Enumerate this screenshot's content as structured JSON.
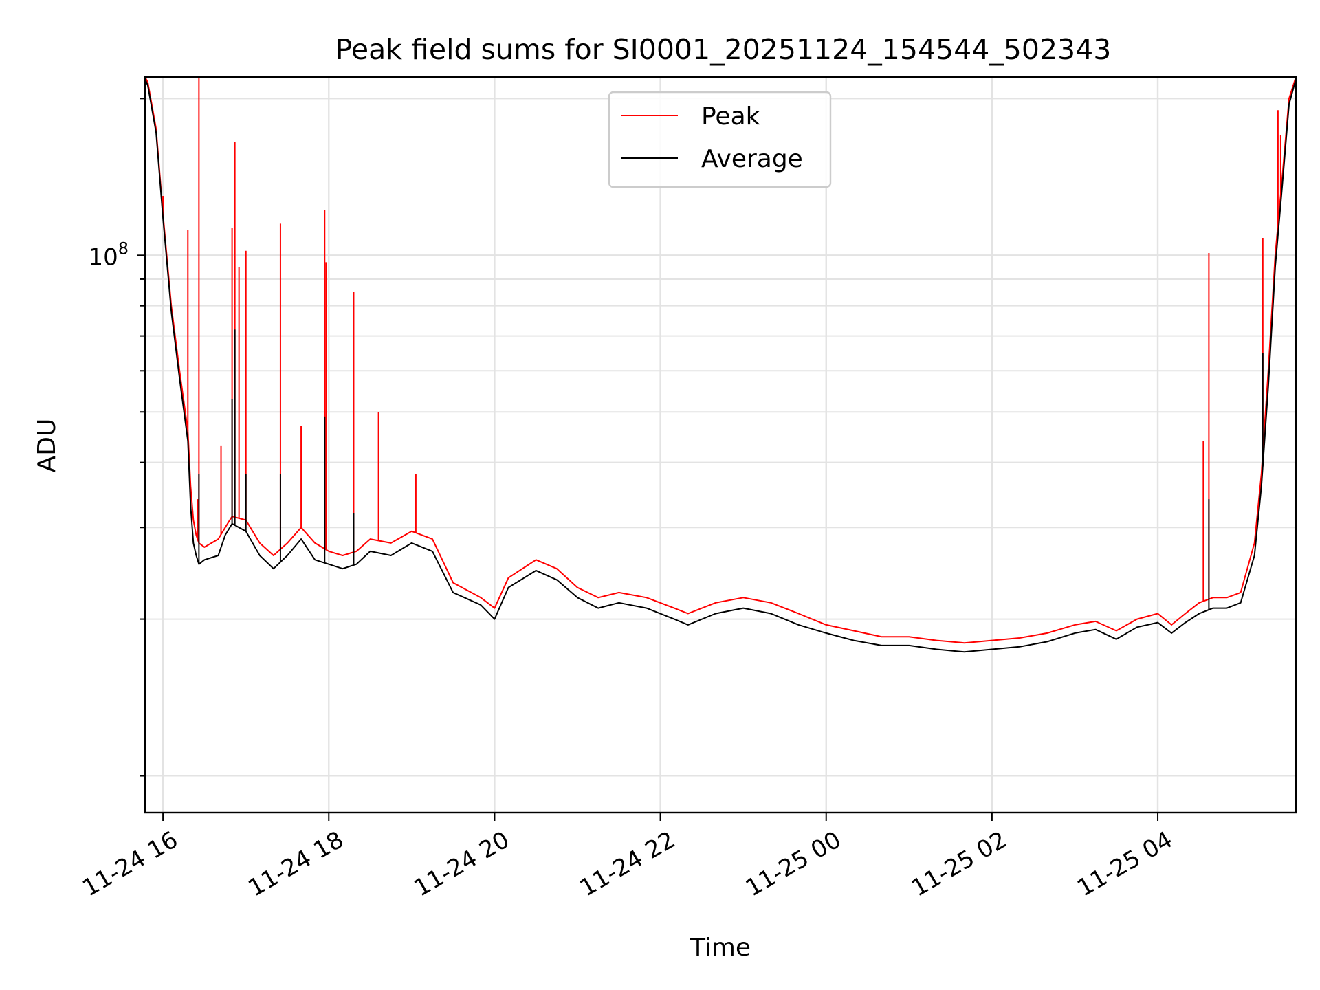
{
  "chart_data": {
    "type": "line",
    "title": "Peak field sums for SI0001_20251124_154544_502343",
    "xlabel": "Time",
    "ylabel": "ADU",
    "y_scale": "log",
    "ylim": [
      8500000,
      220000000
    ],
    "xlim": [
      "2025-11-24 15:47",
      "2025-11-25 05:40"
    ],
    "x_ticks": [
      "2025-11-24 16:00",
      "2025-11-24 18:00",
      "2025-11-24 20:00",
      "2025-11-24 22:00",
      "2025-11-25 00:00",
      "2025-11-25 02:00",
      "2025-11-25 04:00"
    ],
    "x_tick_labels": [
      "11-24 16",
      "11-24 18",
      "11-24 20",
      "11-24 22",
      "11-25 00",
      "11-25 02",
      "11-25 04"
    ],
    "y_ticks": [
      100000000
    ],
    "y_tick_labels": [
      {
        "base": "10",
        "exp": "8"
      }
    ],
    "y_minor_ticks": [
      10000000,
      20000000,
      30000000,
      40000000,
      50000000,
      60000000,
      70000000,
      80000000,
      90000000,
      200000000
    ],
    "grid": true,
    "legend": {
      "position": "upper center",
      "entries": [
        "Peak",
        "Average"
      ]
    },
    "series": [
      {
        "name": "Peak",
        "color": "#ff0000",
        "x": [
          "2025-11-24 15:47",
          "2025-11-24 15:49",
          "2025-11-24 15:55",
          "2025-11-24 16:00",
          "2025-11-24 16:06",
          "2025-11-24 16:12",
          "2025-11-24 16:18",
          "2025-11-24 16:20",
          "2025-11-24 16:22",
          "2025-11-24 16:24",
          "2025-11-24 16:26",
          "2025-11-24 16:30",
          "2025-11-24 16:40",
          "2025-11-24 16:45",
          "2025-11-24 16:50",
          "2025-11-24 17:00",
          "2025-11-24 17:10",
          "2025-11-24 17:20",
          "2025-11-24 17:30",
          "2025-11-24 17:40",
          "2025-11-24 17:50",
          "2025-11-24 18:00",
          "2025-11-24 18:10",
          "2025-11-24 18:20",
          "2025-11-24 18:30",
          "2025-11-24 18:45",
          "2025-11-24 19:00",
          "2025-11-24 19:15",
          "2025-11-24 19:30",
          "2025-11-24 19:50",
          "2025-11-24 20:00",
          "2025-11-24 20:10",
          "2025-11-24 20:30",
          "2025-11-24 20:45",
          "2025-11-24 21:00",
          "2025-11-24 21:15",
          "2025-11-24 21:30",
          "2025-11-24 21:50",
          "2025-11-24 22:10",
          "2025-11-24 22:20",
          "2025-11-24 22:40",
          "2025-11-24 23:00",
          "2025-11-24 23:20",
          "2025-11-24 23:40",
          "2025-11-25 00:00",
          "2025-11-25 00:20",
          "2025-11-25 00:40",
          "2025-11-25 01:00",
          "2025-11-25 01:20",
          "2025-11-25 01:40",
          "2025-11-25 02:00",
          "2025-11-25 02:20",
          "2025-11-25 02:40",
          "2025-11-25 03:00",
          "2025-11-25 03:15",
          "2025-11-25 03:30",
          "2025-11-25 03:45",
          "2025-11-25 04:00",
          "2025-11-25 04:10",
          "2025-11-25 04:20",
          "2025-11-25 04:30",
          "2025-11-25 04:40",
          "2025-11-25 04:50",
          "2025-11-25 05:00",
          "2025-11-25 05:10",
          "2025-11-25 05:15",
          "2025-11-25 05:20",
          "2025-11-25 05:25",
          "2025-11-25 05:30",
          "2025-11-25 05:35",
          "2025-11-25 05:40"
        ],
        "values": [
          220000000,
          215000000,
          175000000,
          120000000,
          80000000,
          60000000,
          46000000,
          36000000,
          31000000,
          29000000,
          28000000,
          27500000,
          28500000,
          30000000,
          31500000,
          31000000,
          28000000,
          26500000,
          28000000,
          30000000,
          28000000,
          27000000,
          26500000,
          27000000,
          28500000,
          28000000,
          29500000,
          28500000,
          23500000,
          22000000,
          21000000,
          24000000,
          26000000,
          25000000,
          23000000,
          22000000,
          22500000,
          22000000,
          21000000,
          20500000,
          21500000,
          22000000,
          21500000,
          20500000,
          19500000,
          19000000,
          18500000,
          18500000,
          18200000,
          18000000,
          18200000,
          18400000,
          18800000,
          19500000,
          19800000,
          19000000,
          20000000,
          20500000,
          19500000,
          20500000,
          21500000,
          22000000,
          22000000,
          22500000,
          28000000,
          38000000,
          60000000,
          100000000,
          140000000,
          200000000,
          220000000
        ],
        "spikes": [
          {
            "x": "2025-11-24 16:00",
            "y": 130000000
          },
          {
            "x": "2025-11-24 16:18",
            "y": 112000000
          },
          {
            "x": "2025-11-24 16:25",
            "y": 34000000
          },
          {
            "x": "2025-11-24 16:26",
            "y": 220000000
          },
          {
            "x": "2025-11-24 16:42",
            "y": 43000000
          },
          {
            "x": "2025-11-24 16:50",
            "y": 113000000
          },
          {
            "x": "2025-11-24 16:52",
            "y": 165000000
          },
          {
            "x": "2025-11-24 16:55",
            "y": 95000000
          },
          {
            "x": "2025-11-24 17:00",
            "y": 102000000
          },
          {
            "x": "2025-11-24 17:25",
            "y": 115000000
          },
          {
            "x": "2025-11-24 17:40",
            "y": 47000000
          },
          {
            "x": "2025-11-24 17:57",
            "y": 122000000
          },
          {
            "x": "2025-11-24 17:58",
            "y": 97000000
          },
          {
            "x": "2025-11-24 18:18",
            "y": 85000000
          },
          {
            "x": "2025-11-24 18:36",
            "y": 50000000
          },
          {
            "x": "2025-11-24 19:03",
            "y": 38000000
          },
          {
            "x": "2025-11-25 04:33",
            "y": 44000000
          },
          {
            "x": "2025-11-25 04:37",
            "y": 101000000
          },
          {
            "x": "2025-11-25 05:16",
            "y": 108000000
          },
          {
            "x": "2025-11-25 05:27",
            "y": 190000000
          },
          {
            "x": "2025-11-25 05:29",
            "y": 170000000
          }
        ]
      },
      {
        "name": "Average",
        "color": "#000000",
        "x": [
          "2025-11-24 15:47",
          "2025-11-24 15:49",
          "2025-11-24 15:55",
          "2025-11-24 16:00",
          "2025-11-24 16:06",
          "2025-11-24 16:12",
          "2025-11-24 16:18",
          "2025-11-24 16:20",
          "2025-11-24 16:22",
          "2025-11-24 16:24",
          "2025-11-24 16:26",
          "2025-11-24 16:30",
          "2025-11-24 16:40",
          "2025-11-24 16:45",
          "2025-11-24 16:50",
          "2025-11-24 17:00",
          "2025-11-24 17:10",
          "2025-11-24 17:20",
          "2025-11-24 17:30",
          "2025-11-24 17:40",
          "2025-11-24 17:50",
          "2025-11-24 18:00",
          "2025-11-24 18:10",
          "2025-11-24 18:20",
          "2025-11-24 18:30",
          "2025-11-24 18:45",
          "2025-11-24 19:00",
          "2025-11-24 19:15",
          "2025-11-24 19:30",
          "2025-11-24 19:50",
          "2025-11-24 20:00",
          "2025-11-24 20:10",
          "2025-11-24 20:30",
          "2025-11-24 20:45",
          "2025-11-24 21:00",
          "2025-11-24 21:15",
          "2025-11-24 21:30",
          "2025-11-24 21:50",
          "2025-11-24 22:10",
          "2025-11-24 22:20",
          "2025-11-24 22:40",
          "2025-11-24 23:00",
          "2025-11-24 23:20",
          "2025-11-24 23:40",
          "2025-11-25 00:00",
          "2025-11-25 00:20",
          "2025-11-25 00:40",
          "2025-11-25 01:00",
          "2025-11-25 01:20",
          "2025-11-25 01:40",
          "2025-11-25 02:00",
          "2025-11-25 02:20",
          "2025-11-25 02:40",
          "2025-11-25 03:00",
          "2025-11-25 03:15",
          "2025-11-25 03:30",
          "2025-11-25 03:45",
          "2025-11-25 04:00",
          "2025-11-25 04:10",
          "2025-11-25 04:20",
          "2025-11-25 04:30",
          "2025-11-25 04:40",
          "2025-11-25 04:50",
          "2025-11-25 05:00",
          "2025-11-25 05:10",
          "2025-11-25 05:15",
          "2025-11-25 05:20",
          "2025-11-25 05:25",
          "2025-11-25 05:30",
          "2025-11-25 05:35",
          "2025-11-25 05:40"
        ],
        "values": [
          218000000,
          212000000,
          172000000,
          118000000,
          78000000,
          58000000,
          44000000,
          33000000,
          28000000,
          26500000,
          25500000,
          26000000,
          26500000,
          29000000,
          30500000,
          29500000,
          26500000,
          25000000,
          26500000,
          28500000,
          26000000,
          25500000,
          25000000,
          25500000,
          27000000,
          26500000,
          28000000,
          27000000,
          22500000,
          21300000,
          20000000,
          23000000,
          24800000,
          23800000,
          22000000,
          21000000,
          21500000,
          21000000,
          20000000,
          19500000,
          20500000,
          21000000,
          20500000,
          19500000,
          18800000,
          18200000,
          17800000,
          17800000,
          17500000,
          17300000,
          17500000,
          17700000,
          18100000,
          18800000,
          19100000,
          18300000,
          19300000,
          19700000,
          18800000,
          19700000,
          20500000,
          21000000,
          21000000,
          21500000,
          26500000,
          36000000,
          56000000,
          95000000,
          135000000,
          195000000,
          218000000
        ],
        "spikes": [
          {
            "x": "2025-11-24 16:26",
            "y": 38000000
          },
          {
            "x": "2025-11-24 16:50",
            "y": 53000000
          },
          {
            "x": "2025-11-24 16:52",
            "y": 72000000
          },
          {
            "x": "2025-11-24 17:00",
            "y": 38000000
          },
          {
            "x": "2025-11-24 17:25",
            "y": 38000000
          },
          {
            "x": "2025-11-24 17:57",
            "y": 49000000
          },
          {
            "x": "2025-11-24 18:18",
            "y": 32000000
          },
          {
            "x": "2025-11-25 04:37",
            "y": 34000000
          },
          {
            "x": "2025-11-25 05:16",
            "y": 65000000
          }
        ]
      }
    ]
  }
}
